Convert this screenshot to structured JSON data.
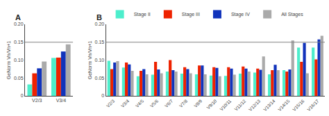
{
  "chart_data": [
    {
      "type": "bar",
      "title": "A",
      "ylabel": "GeNorm Vn/Vn+1",
      "categories": [
        "V2/3",
        "V3/4"
      ],
      "series": [
        {
          "name": "Stage II",
          "color": "#4DEECC",
          "values": [
            0.032,
            0.106
          ]
        },
        {
          "name": "Stage III",
          "color": "#EE2200",
          "values": [
            0.063,
            0.107
          ]
        },
        {
          "name": "Stage IV",
          "color": "#1133BB",
          "values": [
            0.077,
            0.124
          ]
        },
        {
          "name": "All Stages",
          "color": "#AAAAAA",
          "values": [
            0.096,
            0.144
          ]
        }
      ],
      "ylim": [
        0,
        0.2
      ],
      "yticks": [
        0,
        0.05,
        {
          "value": 0.1,
          "label": "0.10"
        },
        0.15,
        {
          "value": 0.2,
          "label": "0.20"
        }
      ],
      "hline": 0.15,
      "grid": false
    },
    {
      "type": "bar",
      "title": "B",
      "ylabel": "GeNorm Vn/Vn+1",
      "categories": [
        "V2/3",
        "V3/4",
        "V4/5",
        "V5/6",
        "V6/7",
        "V7/8",
        "V8/9",
        "V9/10",
        "V10/11",
        "V11/12",
        "V12/13",
        "V13/14",
        "V14/15",
        "V15/16",
        "V16/17"
      ],
      "series": [
        {
          "name": "Stage II",
          "color": "#4DEECC",
          "values": [
            0.098,
            0.079,
            0.055,
            0.059,
            0.068,
            0.062,
            0.06,
            0.057,
            0.056,
            0.062,
            0.065,
            0.06,
            0.072,
            0.135,
            0.135
          ]
        },
        {
          "name": "Stage III",
          "color": "#EE2200",
          "values": [
            0.075,
            0.093,
            0.07,
            0.095,
            0.1,
            0.08,
            0.085,
            0.08,
            0.08,
            0.082,
            0.076,
            0.072,
            0.068,
            0.095,
            0.102
          ]
        },
        {
          "name": "Stage IV",
          "color": "#1133BB",
          "values": [
            0.093,
            0.088,
            0.075,
            0.074,
            0.072,
            0.075,
            0.085,
            0.078,
            0.076,
            0.076,
            0.073,
            0.087,
            0.074,
            0.148,
            0.158
          ]
        },
        {
          "name": "All Stages",
          "color": "#AAAAAA",
          "values": [
            0.097,
            0.07,
            0.06,
            0.063,
            0.068,
            0.063,
            0.06,
            0.055,
            0.059,
            0.068,
            0.11,
            0.072,
            0.155,
            0.063,
            0.168
          ]
        }
      ],
      "ylim": [
        0,
        0.2
      ],
      "yticks": [
        0,
        0.05,
        {
          "value": 0.1,
          "label": "0.10"
        },
        0.15,
        {
          "value": 0.2,
          "label": "0.20"
        }
      ],
      "hline": 0.15,
      "legend": "upper left",
      "grid": false
    }
  ]
}
